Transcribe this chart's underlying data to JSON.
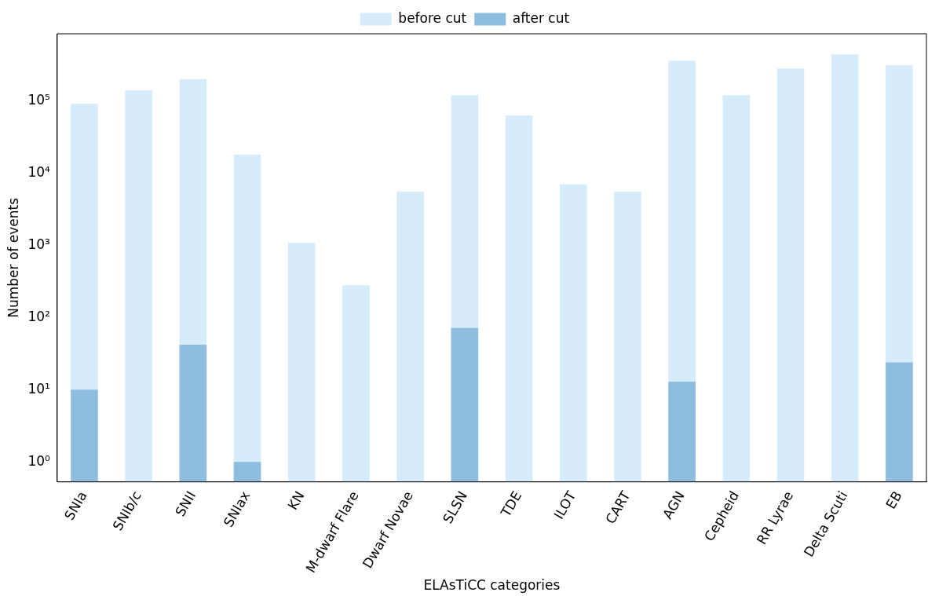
{
  "chart_data": {
    "type": "bar",
    "xlabel": "ELAsTiCC categories",
    "ylabel": "Number of events",
    "categories": [
      "SNIa",
      "SNIb/c",
      "SNII",
      "SNIax",
      "KN",
      "M-dwarf Flare",
      "Dwarf Novae",
      "SLSN",
      "TDE",
      "ILOT",
      "CART",
      "AGN",
      "Cepheid",
      "RR Lyrae",
      "Delta Scuti",
      "EB"
    ],
    "series": [
      {
        "name": "before cut",
        "color": "#d6ecfa",
        "values": [
          91000,
          140000,
          200000,
          18000,
          1080,
          280,
          5500,
          120000,
          63000,
          7000,
          5500,
          360000,
          120000,
          280000,
          440000,
          310000
        ]
      },
      {
        "name": "after cut",
        "color": "#8fbde0",
        "values": [
          10,
          null,
          42,
          1,
          null,
          null,
          null,
          72,
          null,
          null,
          null,
          13,
          null,
          null,
          null,
          24
        ]
      }
    ],
    "log": "y",
    "ylim": [
      0.53,
      850000
    ],
    "yticks": [
      {
        "value": 1,
        "label": "10⁰"
      },
      {
        "value": 10,
        "label": "10¹"
      },
      {
        "value": 100,
        "label": "10²"
      },
      {
        "value": 1000,
        "label": "10³"
      },
      {
        "value": 10000,
        "label": "10⁴"
      },
      {
        "value": 100000,
        "label": "10⁵"
      }
    ],
    "grid": false,
    "legend": "top"
  }
}
